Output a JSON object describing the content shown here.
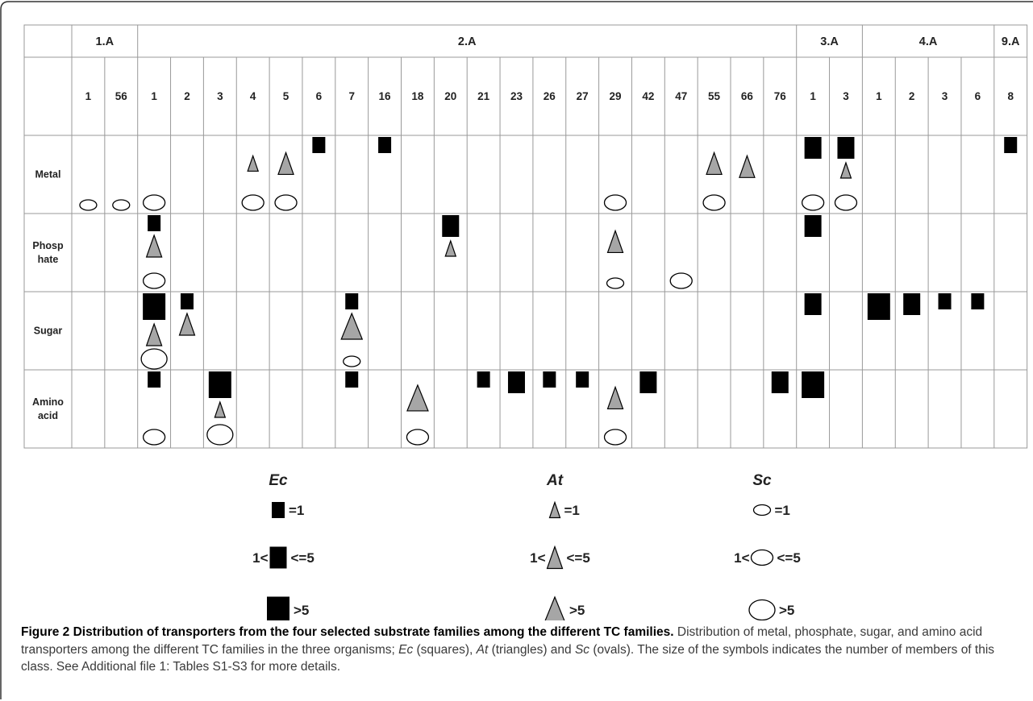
{
  "table": {
    "group_headers": [
      {
        "label": "1.A",
        "start": 0,
        "span": 2
      },
      {
        "label": "2.A",
        "start": 2,
        "span": 20
      },
      {
        "label": "3.A",
        "start": 22,
        "span": 2
      },
      {
        "label": "4.A",
        "start": 24,
        "span": 4
      },
      {
        "label": "9.A",
        "start": 28,
        "span": 1
      }
    ],
    "families": [
      "1",
      "56",
      "1",
      "2",
      "3",
      "4",
      "5",
      "6",
      "7",
      "16",
      "18",
      "20",
      "21",
      "23",
      "26",
      "27",
      "29",
      "42",
      "47",
      "55",
      "66",
      "76",
      "1",
      "3",
      "1",
      "2",
      "3",
      "6",
      "8"
    ],
    "rows": [
      {
        "label": "Metal",
        "label_lines": [
          "Metal"
        ]
      },
      {
        "label": "Phosphate",
        "label_lines": [
          "Phosp",
          "hate"
        ]
      },
      {
        "label": "Sugar",
        "label_lines": [
          "Sugar"
        ]
      },
      {
        "label": "Amino acid",
        "label_lines": [
          "Amino",
          "acid"
        ]
      }
    ],
    "cells": [
      {
        "row": 0,
        "col": 0,
        "ec": 0,
        "at": 0,
        "sc": 1
      },
      {
        "row": 0,
        "col": 1,
        "ec": 0,
        "at": 0,
        "sc": 1
      },
      {
        "row": 0,
        "col": 2,
        "ec": 0,
        "at": 0,
        "sc": 2
      },
      {
        "row": 0,
        "col": 5,
        "ec": 0,
        "at": 1,
        "sc": 2
      },
      {
        "row": 0,
        "col": 6,
        "ec": 0,
        "at": 2,
        "sc": 2
      },
      {
        "row": 0,
        "col": 7,
        "ec": 1,
        "at": 0,
        "sc": 0
      },
      {
        "row": 0,
        "col": 9,
        "ec": 1,
        "at": 0,
        "sc": 0
      },
      {
        "row": 0,
        "col": 16,
        "ec": 0,
        "at": 0,
        "sc": 2
      },
      {
        "row": 0,
        "col": 19,
        "ec": 0,
        "at": 2,
        "sc": 2
      },
      {
        "row": 0,
        "col": 20,
        "ec": 0,
        "at": 2,
        "sc": 0
      },
      {
        "row": 0,
        "col": 22,
        "ec": 2,
        "at": 0,
        "sc": 2
      },
      {
        "row": 0,
        "col": 23,
        "ec": 2,
        "at": 1,
        "sc": 2
      },
      {
        "row": 0,
        "col": 28,
        "ec": 1,
        "at": 0,
        "sc": 0
      },
      {
        "row": 1,
        "col": 2,
        "ec": 1,
        "at": 2,
        "sc": 2
      },
      {
        "row": 1,
        "col": 11,
        "ec": 2,
        "at": 1,
        "sc": 0
      },
      {
        "row": 1,
        "col": 16,
        "ec": 0,
        "at": 2,
        "sc": 1
      },
      {
        "row": 1,
        "col": 18,
        "ec": 0,
        "at": 0,
        "sc": 2
      },
      {
        "row": 1,
        "col": 22,
        "ec": 2,
        "at": 0,
        "sc": 0
      },
      {
        "row": 2,
        "col": 2,
        "ec": 3,
        "at": 2,
        "sc": 3
      },
      {
        "row": 2,
        "col": 3,
        "ec": 1,
        "at": 2,
        "sc": 0
      },
      {
        "row": 2,
        "col": 8,
        "ec": 1,
        "at": 3,
        "sc": 1
      },
      {
        "row": 2,
        "col": 22,
        "ec": 2,
        "at": 0,
        "sc": 0
      },
      {
        "row": 2,
        "col": 24,
        "ec": 3,
        "at": 0,
        "sc": 0
      },
      {
        "row": 2,
        "col": 25,
        "ec": 2,
        "at": 0,
        "sc": 0
      },
      {
        "row": 2,
        "col": 26,
        "ec": 1,
        "at": 0,
        "sc": 0
      },
      {
        "row": 2,
        "col": 27,
        "ec": 1,
        "at": 0,
        "sc": 0
      },
      {
        "row": 3,
        "col": 2,
        "ec": 1,
        "at": 0,
        "sc": 2
      },
      {
        "row": 3,
        "col": 4,
        "ec": 3,
        "at": 1,
        "sc": 3
      },
      {
        "row": 3,
        "col": 8,
        "ec": 1,
        "at": 0,
        "sc": 0
      },
      {
        "row": 3,
        "col": 10,
        "ec": 0,
        "at": 3,
        "sc": 2
      },
      {
        "row": 3,
        "col": 12,
        "ec": 1,
        "at": 0,
        "sc": 0
      },
      {
        "row": 3,
        "col": 13,
        "ec": 2,
        "at": 0,
        "sc": 0
      },
      {
        "row": 3,
        "col": 14,
        "ec": 1,
        "at": 0,
        "sc": 0
      },
      {
        "row": 3,
        "col": 15,
        "ec": 1,
        "at": 0,
        "sc": 0
      },
      {
        "row": 3,
        "col": 16,
        "ec": 0,
        "at": 2,
        "sc": 2
      },
      {
        "row": 3,
        "col": 17,
        "ec": 2,
        "at": 0,
        "sc": 0
      },
      {
        "row": 3,
        "col": 21,
        "ec": 2,
        "at": 0,
        "sc": 0
      },
      {
        "row": 3,
        "col": 22,
        "ec": 3,
        "at": 0,
        "sc": 0
      }
    ]
  },
  "legend": {
    "columns": [
      {
        "title": "Ec",
        "shape": "square",
        "entries": [
          {
            "prefix": "",
            "suffix": "=1",
            "size": 1
          },
          {
            "prefix": "1<",
            "suffix": "<=5",
            "size": 2
          },
          {
            "prefix": "",
            "suffix": ">5",
            "size": 3
          }
        ]
      },
      {
        "title": "At",
        "shape": "triangle",
        "entries": [
          {
            "prefix": "",
            "suffix": "=1",
            "size": 1
          },
          {
            "prefix": "1<",
            "suffix": "<=5",
            "size": 2
          },
          {
            "prefix": "",
            "suffix": ">5",
            "size": 3
          }
        ]
      },
      {
        "title": "Sc",
        "shape": "oval",
        "entries": [
          {
            "prefix": "",
            "suffix": "=1",
            "size": 1
          },
          {
            "prefix": "1<",
            "suffix": "<=5",
            "size": 2
          },
          {
            "prefix": "",
            "suffix": ">5",
            "size": 3
          }
        ]
      }
    ]
  },
  "caption": {
    "title": "Figure 2 Distribution of transporters from the four selected substrate families among the different TC families.",
    "body_1": "Distribution of metal, phosphate, sugar, and amino acid transporters among the different TC families in the three organisms;",
    "ec": "Ec",
    "ec_desc": "(squares),",
    "at": "At",
    "at_desc": "(triangles) and",
    "sc": "Sc",
    "sc_desc": "(ovals).",
    "body_2": "The size of the symbols indicates the number of members of this class. See Additional file 1: Tables S1-S3 for more details."
  },
  "colors": {
    "square": "#000000",
    "triangle_fill": "#a6a6a6",
    "oval_fill": "#ffffff",
    "grid": "#999999",
    "frame": "#333333"
  }
}
